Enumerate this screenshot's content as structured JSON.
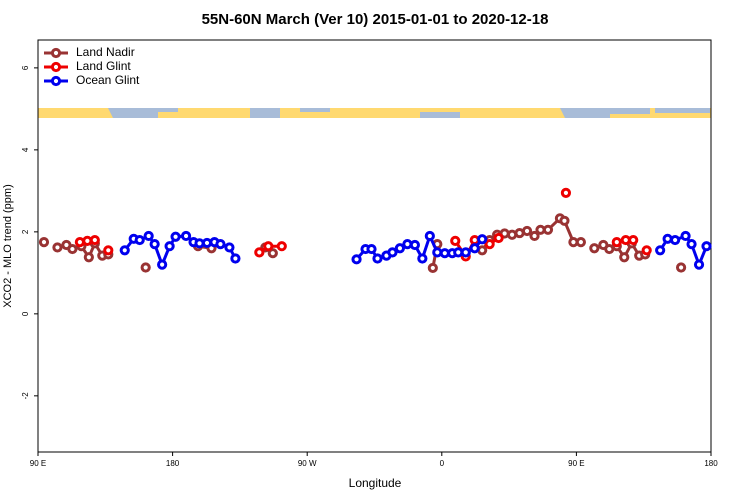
{
  "chart_data": {
    "type": "line",
    "title": "55N-60N March (Ver 10)   2015-01-01 to 2020-12-18",
    "x_label": "Longitude",
    "y_label": "XCO2 - MLO trend (ppm)",
    "xlim": [
      90,
      540
    ],
    "ylim": [
      -3.37,
      6.68
    ],
    "xticks": [
      {
        "value": 90,
        "label": "90 E"
      },
      180,
      {
        "value": 270,
        "label": "90 W"
      },
      {
        "value": 360,
        "label": "0"
      },
      {
        "value": 450,
        "label": "90 E"
      },
      {
        "value": 540,
        "label": "180"
      }
    ],
    "yticks": [
      -2,
      0,
      2,
      4,
      6
    ],
    "legend": "top-left",
    "series": [
      {
        "name": "Land Nadir",
        "color": "#993333",
        "x": [
          94,
          null,
          103,
          109,
          113,
          119,
          124,
          128,
          133,
          137,
          null,
          162,
          null,
          197,
          206,
          null,
          242,
          247,
          null,
          354,
          357,
          null,
          387,
          392,
          397,
          402,
          407,
          412,
          417,
          422,
          426,
          431,
          439,
          442,
          448,
          453,
          null,
          462,
          468,
          472,
          477,
          482,
          487,
          492,
          496,
          null,
          520
        ],
        "values": [
          1.75,
          null,
          1.62,
          1.68,
          1.58,
          1.65,
          1.38,
          1.72,
          1.42,
          1.45,
          null,
          1.13,
          null,
          1.65,
          1.6,
          null,
          1.62,
          1.48,
          null,
          1.12,
          1.7,
          null,
          1.55,
          1.8,
          1.93,
          1.96,
          1.93,
          1.97,
          2.02,
          1.9,
          2.05,
          2.05,
          2.33,
          2.27,
          1.75,
          1.75,
          null,
          1.6,
          1.68,
          1.58,
          1.65,
          1.38,
          1.72,
          1.42,
          1.45,
          null,
          1.13
        ]
      },
      {
        "name": "Land Glint",
        "color": "#ee0000",
        "x": [
          118,
          123,
          128,
          null,
          137,
          null,
          238,
          244,
          253,
          null,
          369,
          376,
          382,
          392,
          398,
          null,
          443,
          null,
          477,
          483,
          488,
          null,
          497
        ],
        "values": [
          1.75,
          1.78,
          1.8,
          null,
          1.55,
          null,
          1.5,
          1.65,
          1.65,
          null,
          1.78,
          1.4,
          1.8,
          1.7,
          1.85,
          null,
          2.95,
          null,
          1.75,
          1.8,
          1.8,
          null,
          1.55
        ]
      },
      {
        "name": "Ocean Glint",
        "color": "#0000ee",
        "x": [
          148,
          154,
          158,
          164,
          168,
          173,
          178,
          182,
          189,
          194,
          198,
          203,
          208,
          212,
          218,
          222,
          null,
          303,
          309,
          313,
          317,
          323,
          327,
          332,
          337,
          342,
          347,
          352,
          357,
          362,
          367,
          371,
          376,
          382,
          387,
          null,
          506,
          511,
          516,
          523,
          527,
          532,
          537
        ],
        "values": [
          1.55,
          1.83,
          1.8,
          1.9,
          1.7,
          1.2,
          1.65,
          1.88,
          1.9,
          1.75,
          1.72,
          1.73,
          1.75,
          1.7,
          1.62,
          1.35,
          null,
          1.33,
          1.58,
          1.58,
          1.35,
          1.42,
          1.5,
          1.6,
          1.7,
          1.68,
          1.35,
          1.9,
          1.5,
          1.48,
          1.48,
          1.5,
          1.5,
          1.6,
          1.82,
          null,
          1.55,
          1.83,
          1.8,
          1.9,
          1.7,
          1.2,
          1.65
        ]
      }
    ]
  }
}
